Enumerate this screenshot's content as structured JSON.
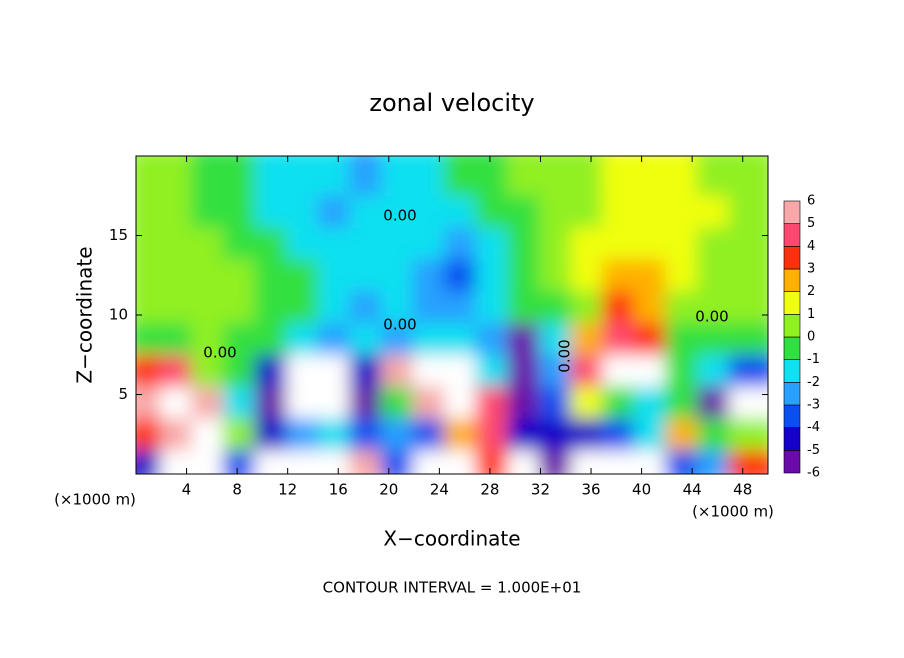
{
  "chart_data": {
    "type": "heatmap",
    "title": "zonal velocity",
    "x_label": "X−coordinate",
    "y_label": "Z−coordinate",
    "x_unit": "(×1000 m)",
    "y_unit": "(×1000 m)",
    "footnote": "CONTOUR INTERVAL = 1.000E+01",
    "contour_labels": [
      "0.00",
      "0.00",
      "0.00",
      "0.00",
      "0.00"
    ],
    "x": [
      1.25,
      3.75,
      6.25,
      8.75,
      11.25,
      13.75,
      16.25,
      18.75,
      21.25,
      23.75,
      26.25,
      28.75,
      31.25,
      33.75,
      36.25,
      38.75,
      41.25,
      43.75,
      46.25,
      48.75
    ],
    "y": [
      1,
      3,
      5,
      7,
      9,
      11,
      13,
      15,
      17,
      19
    ],
    "values": [
      [
        -4,
        8,
        8,
        -3,
        7,
        8,
        8,
        6,
        -3,
        8,
        8,
        4,
        8,
        -5,
        8,
        8,
        8,
        -3,
        -2,
        4
      ],
      [
        4,
        6,
        7,
        1,
        -4,
        -2,
        -1,
        -3,
        -2,
        -3,
        3,
        5,
        -4,
        -4,
        -4,
        -3,
        -1,
        3,
        0,
        1
      ],
      [
        6,
        8,
        6,
        -1,
        -5,
        8,
        8,
        -5,
        0,
        6,
        8,
        5,
        -5,
        -3,
        2,
        0,
        -1,
        0,
        -5,
        8
      ],
      [
        4,
        5,
        1,
        0,
        -4,
        8,
        8,
        -4,
        6,
        8,
        8,
        -1,
        -6,
        -2,
        5,
        8,
        8,
        0,
        -1,
        -3
      ],
      [
        0,
        0,
        1,
        0,
        0,
        -1,
        -2,
        -1,
        -2,
        -1,
        -1,
        -2,
        -5,
        -1,
        3,
        5,
        4,
        0,
        0,
        0
      ],
      [
        1,
        1,
        1,
        1,
        0,
        0,
        -1,
        -2,
        -1,
        -2,
        -2,
        -1,
        0,
        0,
        1,
        4,
        3,
        1,
        1,
        1
      ],
      [
        1,
        1,
        1,
        1,
        0,
        0,
        -1,
        -1,
        -1,
        -2,
        -3,
        -1,
        0,
        1,
        2,
        3,
        3,
        2,
        1,
        1
      ],
      [
        1,
        1,
        1,
        0,
        0,
        -1,
        -1,
        -1,
        -1,
        -1,
        -2,
        -1,
        0,
        1,
        2,
        2,
        2,
        2,
        1,
        1
      ],
      [
        1,
        1,
        0,
        0,
        -1,
        -1,
        -2,
        -1,
        -1,
        -1,
        -1,
        0,
        0,
        1,
        1,
        2,
        2,
        2,
        2,
        1
      ],
      [
        1,
        1,
        0,
        0,
        -1,
        -1,
        -1,
        -2,
        -1,
        -1,
        0,
        0,
        1,
        1,
        1,
        2,
        2,
        2,
        1,
        1
      ]
    ],
    "xlim": [
      0,
      50
    ],
    "ylim": [
      0,
      20
    ],
    "xticks": [
      4,
      8,
      12,
      16,
      20,
      24,
      28,
      32,
      36,
      40,
      44,
      48
    ],
    "yticks": [
      5,
      10,
      15
    ],
    "levels": [
      -6,
      -5,
      -4,
      -3,
      -2,
      -1,
      0,
      1,
      2,
      3,
      4,
      5,
      6
    ],
    "colors": [
      "#6a0aa8",
      "#1400c8",
      "#0a50f0",
      "#28a0ff",
      "#10e0f0",
      "#30e040",
      "#90f020",
      "#f0ff10",
      "#ffb000",
      "#ff3010",
      "#ff4870",
      "#f8a8a8"
    ],
    "extend_color": "#ffffff"
  }
}
